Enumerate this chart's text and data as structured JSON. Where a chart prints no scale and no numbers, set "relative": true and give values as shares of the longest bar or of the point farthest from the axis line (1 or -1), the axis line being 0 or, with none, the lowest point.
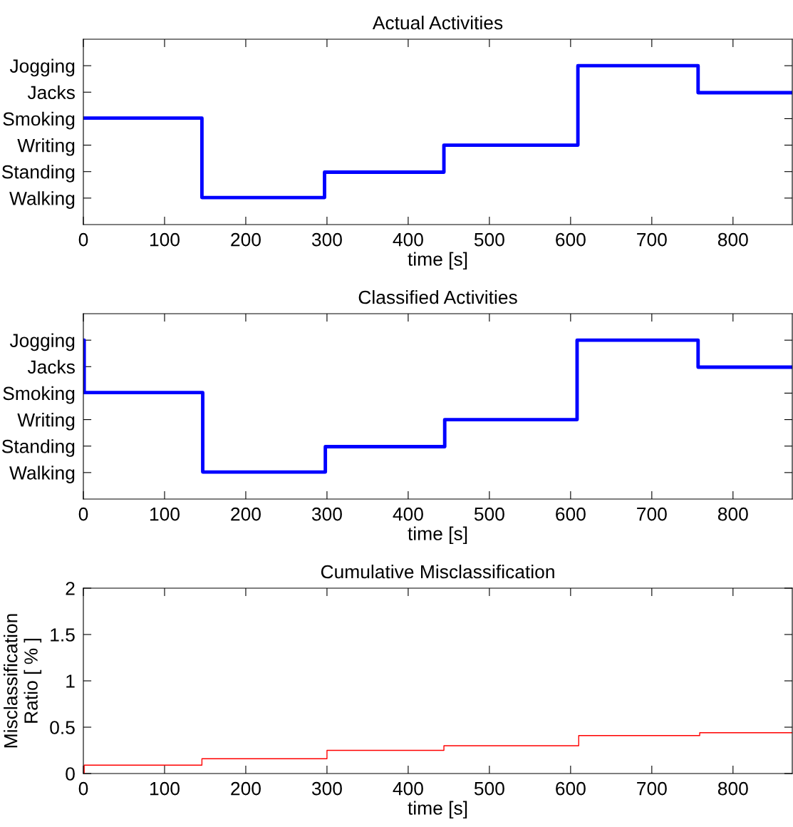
{
  "chart_data": [
    {
      "type": "step",
      "title": "Actual Activities",
      "xlabel": "time [s]",
      "x": [
        0,
        146,
        297,
        444,
        609,
        757,
        873
      ],
      "relative": true,
      "series": [
        {
          "color": "#0000ff",
          "values": [
            0.67,
            0.17,
            0.33,
            0.5,
            1,
            0.83,
            0.83
          ]
        }
      ],
      "annotations": [
        "Walking",
        "Standing",
        "Writing",
        "Smoking",
        "Jacks",
        "Jogging"
      ],
      "xlim": [
        0,
        873
      ],
      "xticks": [
        0,
        100,
        200,
        300,
        400,
        500,
        600,
        700,
        800
      ],
      "grid": false,
      "legend": false
    },
    {
      "type": "step",
      "title": "Classified Activities",
      "xlabel": "time [s]",
      "x": [
        0,
        1,
        147,
        298,
        445,
        608,
        757,
        873
      ],
      "relative": true,
      "series": [
        {
          "color": "#0000ff",
          "values": [
            1,
            0.67,
            0.17,
            0.33,
            0.5,
            1,
            0.83,
            0.83
          ]
        }
      ],
      "annotations": [
        "Walking",
        "Standing",
        "Writing",
        "Smoking",
        "Jacks",
        "Jogging"
      ],
      "xlim": [
        0,
        873
      ],
      "xticks": [
        0,
        100,
        200,
        300,
        400,
        500,
        600,
        700,
        800
      ],
      "grid": false,
      "legend": false
    },
    {
      "type": "step",
      "title": "Cumulative Misclassification",
      "xlabel": "time [s]",
      "ylabel": "Misclassification\nRatio [ % ]",
      "x": [
        0,
        1,
        146,
        300,
        444,
        610,
        759,
        873
      ],
      "series": [
        {
          "color": "#ff0000",
          "values": [
            0,
            0.09,
            0.16,
            0.25,
            0.3,
            0.41,
            0.44,
            0.44
          ]
        }
      ],
      "xlim": [
        0,
        873
      ],
      "xticks": [
        0,
        100,
        200,
        300,
        400,
        500,
        600,
        700,
        800
      ],
      "ylim": [
        0,
        2
      ],
      "yticks": [
        0,
        0.5,
        1,
        1.5,
        2
      ],
      "grid": false,
      "legend": false
    }
  ]
}
